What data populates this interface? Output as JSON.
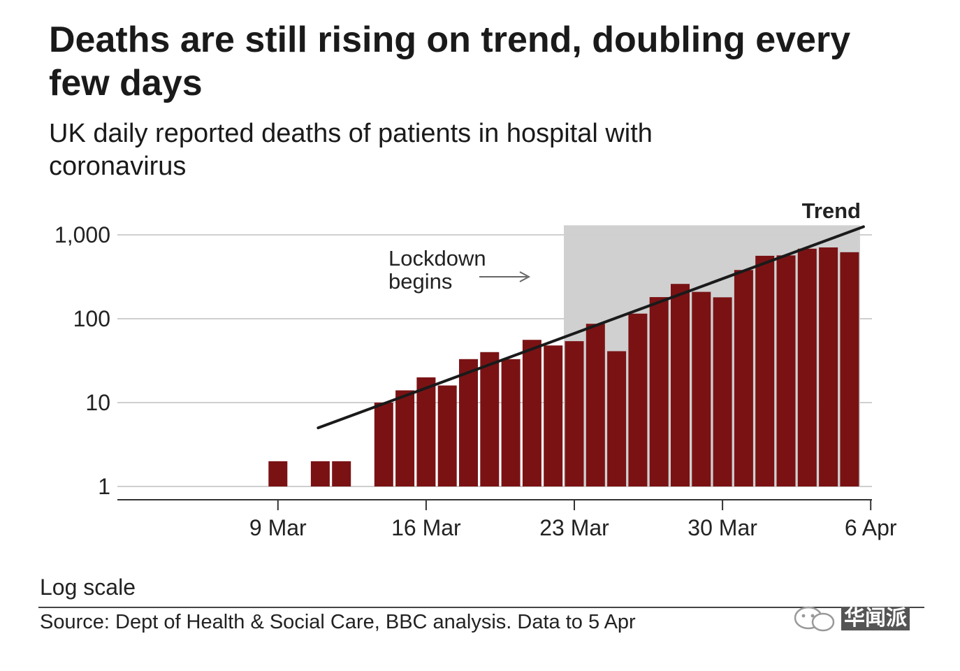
{
  "title": "Deaths are still rising on trend, doubling every few days",
  "subtitle": "UK daily reported deaths of patients in hospital with coronavirus",
  "chart_data": {
    "type": "bar",
    "title": "Deaths are still rising on trend, doubling every few days",
    "subtitle": "UK daily reported deaths of patients in hospital with coronavirus",
    "y_scale": "log",
    "ylim": [
      1,
      1300
    ],
    "y_ticks": [
      {
        "value": 1,
        "label": "1"
      },
      {
        "value": 10,
        "label": "10"
      },
      {
        "value": 100,
        "label": "100"
      },
      {
        "value": 1000,
        "label": "1,000"
      }
    ],
    "x_ticks": [
      {
        "date": "2020-03-09",
        "label": "9 Mar"
      },
      {
        "date": "2020-03-16",
        "label": "16 Mar"
      },
      {
        "date": "2020-03-23",
        "label": "23 Mar"
      },
      {
        "date": "2020-03-30",
        "label": "30 Mar"
      },
      {
        "date": "2020-04-06",
        "label": "6 Apr"
      }
    ],
    "xlim": [
      "2020-03-03",
      "2020-04-07"
    ],
    "bar_color": "#7a1214",
    "bars": [
      {
        "date": "2020-03-09",
        "value": 2
      },
      {
        "date": "2020-03-11",
        "value": 2
      },
      {
        "date": "2020-03-12",
        "value": 2
      },
      {
        "date": "2020-03-14",
        "value": 10
      },
      {
        "date": "2020-03-15",
        "value": 14
      },
      {
        "date": "2020-03-16",
        "value": 20
      },
      {
        "date": "2020-03-17",
        "value": 16
      },
      {
        "date": "2020-03-18",
        "value": 33
      },
      {
        "date": "2020-03-19",
        "value": 40
      },
      {
        "date": "2020-03-20",
        "value": 33
      },
      {
        "date": "2020-03-21",
        "value": 56
      },
      {
        "date": "2020-03-22",
        "value": 48
      },
      {
        "date": "2020-03-23",
        "value": 54
      },
      {
        "date": "2020-03-24",
        "value": 87
      },
      {
        "date": "2020-03-25",
        "value": 41
      },
      {
        "date": "2020-03-26",
        "value": 115
      },
      {
        "date": "2020-03-27",
        "value": 181
      },
      {
        "date": "2020-03-28",
        "value": 260
      },
      {
        "date": "2020-03-29",
        "value": 209
      },
      {
        "date": "2020-03-30",
        "value": 180
      },
      {
        "date": "2020-03-31",
        "value": 381
      },
      {
        "date": "2020-04-01",
        "value": 563
      },
      {
        "date": "2020-04-02",
        "value": 569
      },
      {
        "date": "2020-04-03",
        "value": 684
      },
      {
        "date": "2020-04-04",
        "value": 708
      },
      {
        "date": "2020-04-05",
        "value": 621
      }
    ],
    "trend": {
      "label": "Trend",
      "color": "#1a1a1a",
      "start": {
        "date": "2020-03-11",
        "value": 5
      },
      "end": {
        "date": "2020-04-05",
        "value": 1250
      }
    },
    "lockdown": {
      "label_line1": "Lockdown",
      "label_line2": "begins",
      "start_date": "2020-03-23",
      "end_date": "2020-04-05",
      "color": "#d0d0d0"
    },
    "grid": true
  },
  "footer": {
    "scale_note": "Log scale",
    "source": "Source: Dept of Health & Social Care, BBC analysis. Data to 5 Apr"
  },
  "watermark": {
    "text": "华闻派"
  }
}
